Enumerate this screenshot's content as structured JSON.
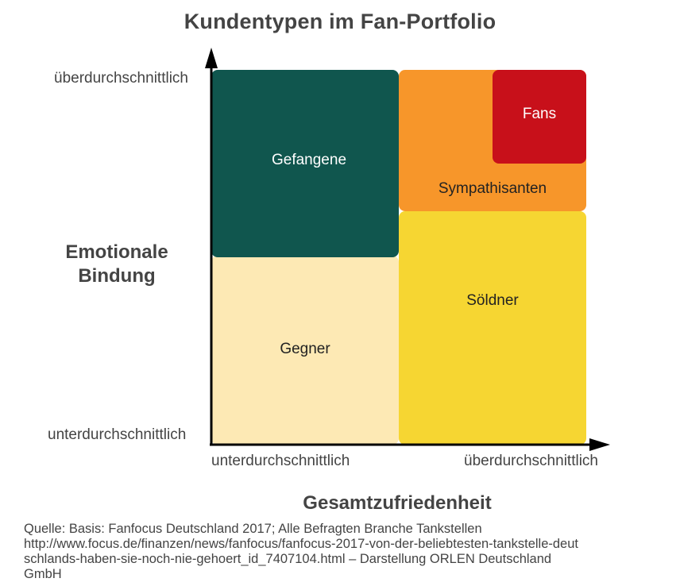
{
  "title": "Kundentypen im Fan-Portfolio",
  "y_axis": {
    "title_line1": "Emotionale",
    "title_line2": "Bindung",
    "high": "überdurchschnittlich",
    "low": "unterdurchschnittlich"
  },
  "x_axis": {
    "title": "Gesamtzufriedenheit",
    "low": "unterdurchschnittlich",
    "high": "überdurchschnittlich"
  },
  "segments": {
    "gefangene": {
      "label": "Gefangene",
      "color": "#10564e",
      "text_color": "#ffffff"
    },
    "gegner": {
      "label": "Gegner",
      "color": "#fde9b4",
      "text_color": "#222222"
    },
    "sympathisanten": {
      "label": "Sympathisanten",
      "color": "#f7962a",
      "text_color": "#222222"
    },
    "fans": {
      "label": "Fans",
      "color": "#c8101a",
      "text_color": "#ffffff"
    },
    "soeldner": {
      "label": "Söldner",
      "color": "#f6d632",
      "text_color": "#222222"
    }
  },
  "source": {
    "line1": "Quelle: Basis: Fanfocus Deutschland 2017; Alle Befragten Branche Tankstellen",
    "line2": "http://www.focus.de/finanzen/news/fanfocus/fanfocus-2017-von-der-beliebtesten-tankstelle-deut",
    "line3": "schlands-haben-sie-noch-nie-gehoert_id_7407104.html – Darstellung ORLEN Deutschland",
    "line4": "GmbH"
  }
}
